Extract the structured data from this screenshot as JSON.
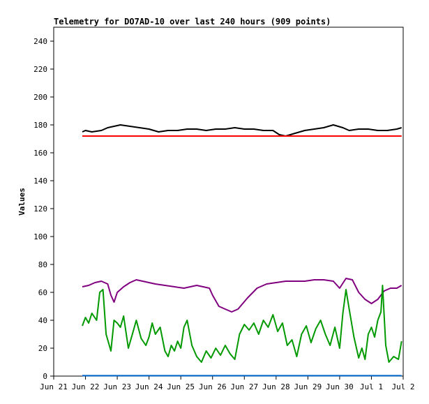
{
  "chart_data": {
    "type": "line",
    "title": "Telemetry for DO7AD-10 over last 240 hours (909 points)",
    "ylabel": "Values",
    "xlabel": "",
    "ylim": [
      0,
      250
    ],
    "xlim": [
      0,
      11
    ],
    "yticks": [
      0,
      20,
      40,
      60,
      80,
      100,
      120,
      140,
      160,
      180,
      200,
      220,
      240
    ],
    "x_ticks": [
      {
        "x": 0,
        "label": "Jun 21"
      },
      {
        "x": 1,
        "label": "Jun 22"
      },
      {
        "x": 2,
        "label": "Jun 23"
      },
      {
        "x": 3,
        "label": "Jun 24"
      },
      {
        "x": 4,
        "label": "Jun 25"
      },
      {
        "x": 5,
        "label": "Jun 26"
      },
      {
        "x": 6,
        "label": "Jun 27"
      },
      {
        "x": 7,
        "label": "Jun 28"
      },
      {
        "x": 8,
        "label": "Jun 29"
      },
      {
        "x": 9,
        "label": "Jun 30"
      },
      {
        "x": 10,
        "label": "Jul 1"
      },
      {
        "x": 11,
        "label": "Jul 2"
      }
    ],
    "grid": false,
    "series": [
      {
        "color": "#000000",
        "x": [
          0.9,
          1.0,
          1.2,
          1.5,
          1.7,
          1.9,
          2.1,
          2.4,
          2.7,
          3.0,
          3.3,
          3.6,
          3.9,
          4.2,
          4.5,
          4.8,
          5.1,
          5.4,
          5.7,
          6.0,
          6.3,
          6.6,
          6.9,
          7.1,
          7.3,
          7.6,
          7.9,
          8.2,
          8.5,
          8.8,
          9.1,
          9.3,
          9.6,
          9.9,
          10.2,
          10.5,
          10.8,
          10.95
        ],
        "y": [
          175,
          176,
          175,
          176,
          178,
          179,
          180,
          179,
          178,
          177,
          175,
          176,
          176,
          177,
          177,
          176,
          177,
          177,
          178,
          177,
          177,
          176,
          176,
          173,
          172,
          174,
          176,
          177,
          178,
          180,
          178,
          176,
          177,
          177,
          176,
          176,
          177,
          178
        ]
      },
      {
        "color": "#ff0000",
        "x": [
          0.9,
          10.95
        ],
        "y": [
          172,
          172
        ]
      },
      {
        "color": "#800080",
        "x": [
          0.9,
          1.1,
          1.3,
          1.5,
          1.7,
          1.8,
          1.9,
          2.0,
          2.2,
          2.4,
          2.6,
          2.8,
          3.0,
          3.2,
          3.5,
          3.8,
          4.1,
          4.3,
          4.5,
          4.7,
          4.9,
          5.0,
          5.2,
          5.4,
          5.6,
          5.8,
          6.1,
          6.4,
          6.7,
          7.0,
          7.3,
          7.6,
          7.9,
          8.2,
          8.5,
          8.8,
          9.0,
          9.2,
          9.4,
          9.6,
          9.8,
          10.0,
          10.2,
          10.4,
          10.6,
          10.8,
          10.95
        ],
        "y": [
          64,
          65,
          67,
          68,
          66,
          58,
          53,
          60,
          64,
          67,
          69,
          68,
          67,
          66,
          65,
          64,
          63,
          64,
          65,
          64,
          63,
          58,
          50,
          48,
          46,
          48,
          56,
          63,
          66,
          67,
          68,
          68,
          68,
          69,
          69,
          68,
          63,
          70,
          69,
          60,
          55,
          52,
          55,
          61,
          63,
          63,
          65
        ]
      },
      {
        "color": "#009900",
        "x": [
          0.9,
          1.0,
          1.1,
          1.2,
          1.35,
          1.45,
          1.55,
          1.65,
          1.7,
          1.8,
          1.9,
          2.0,
          2.1,
          2.2,
          2.35,
          2.5,
          2.6,
          2.75,
          2.9,
          3.0,
          3.1,
          3.2,
          3.35,
          3.5,
          3.6,
          3.7,
          3.8,
          3.9,
          4.0,
          4.1,
          4.2,
          4.35,
          4.5,
          4.65,
          4.8,
          4.95,
          5.1,
          5.25,
          5.4,
          5.55,
          5.7,
          5.85,
          6.0,
          6.15,
          6.3,
          6.45,
          6.6,
          6.75,
          6.9,
          7.05,
          7.2,
          7.35,
          7.5,
          7.65,
          7.8,
          7.95,
          8.1,
          8.25,
          8.4,
          8.55,
          8.7,
          8.85,
          9.0,
          9.1,
          9.2,
          9.3,
          9.45,
          9.6,
          9.7,
          9.8,
          9.9,
          10.0,
          10.1,
          10.2,
          10.3,
          10.35,
          10.45,
          10.55,
          10.7,
          10.85,
          10.95
        ],
        "y": [
          36,
          42,
          38,
          45,
          40,
          60,
          62,
          30,
          26,
          18,
          40,
          38,
          35,
          43,
          20,
          32,
          40,
          27,
          22,
          28,
          38,
          30,
          35,
          18,
          14,
          22,
          18,
          25,
          20,
          35,
          40,
          22,
          14,
          10,
          18,
          13,
          20,
          15,
          22,
          16,
          12,
          30,
          37,
          33,
          38,
          30,
          40,
          35,
          44,
          32,
          38,
          22,
          26,
          14,
          30,
          36,
          24,
          34,
          40,
          30,
          22,
          35,
          20,
          45,
          62,
          48,
          28,
          13,
          20,
          12,
          30,
          35,
          28,
          40,
          46,
          65,
          22,
          10,
          14,
          12,
          25
        ]
      },
      {
        "color": "#0066cc",
        "x": [
          0.9,
          10.95
        ],
        "y": [
          0.3,
          0.3
        ]
      }
    ]
  }
}
